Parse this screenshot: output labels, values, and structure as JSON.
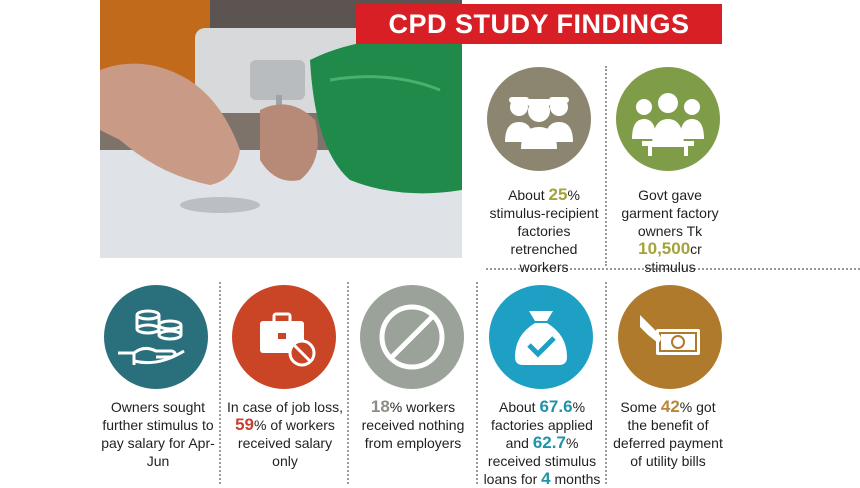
{
  "title": "CPD STUDY FINDINGS",
  "colors": {
    "title_bg": "#d91f26",
    "taupe": "#8c8670",
    "olive": "#7f9c48",
    "teal": "#2a6f7c",
    "rust": "#c94526",
    "gray": "#9ba29a",
    "cyan": "#1ea0c4",
    "tan": "#b07a2d"
  },
  "top_findings": [
    {
      "icon": "workers-group-icon",
      "pre": "About ",
      "highlight": "25",
      "post": "% stimulus-recipient factories retrenched workers"
    },
    {
      "icon": "owners-group-icon",
      "pre": "Govt gave garment factory owners Tk ",
      "highlight": "10,500",
      "post": "cr stimulus"
    }
  ],
  "bottom_findings": [
    {
      "icon": "coins-in-hand-icon",
      "text": "Owners sought further stimulus to pay salary for Apr-Jun"
    },
    {
      "icon": "briefcase-blocked-icon",
      "pre": "In case of job loss, ",
      "highlight": "59",
      "post": "% of workers received salary only"
    },
    {
      "icon": "prohibited-icon",
      "pre": "",
      "highlight": "18",
      "post": "% workers received nothing from employers"
    },
    {
      "icon": "money-bag-check-icon",
      "pre": "About ",
      "highlight": "67.6",
      "mid": "% factories applied and ",
      "highlight2": "62.7",
      "post": "% received stimulus loans for ",
      "highlight3": "4",
      "post2": " months"
    },
    {
      "icon": "bill-payment-icon",
      "pre": "Some ",
      "highlight": "42",
      "post": "% got the benefit of deferred payment of utility bills"
    }
  ]
}
